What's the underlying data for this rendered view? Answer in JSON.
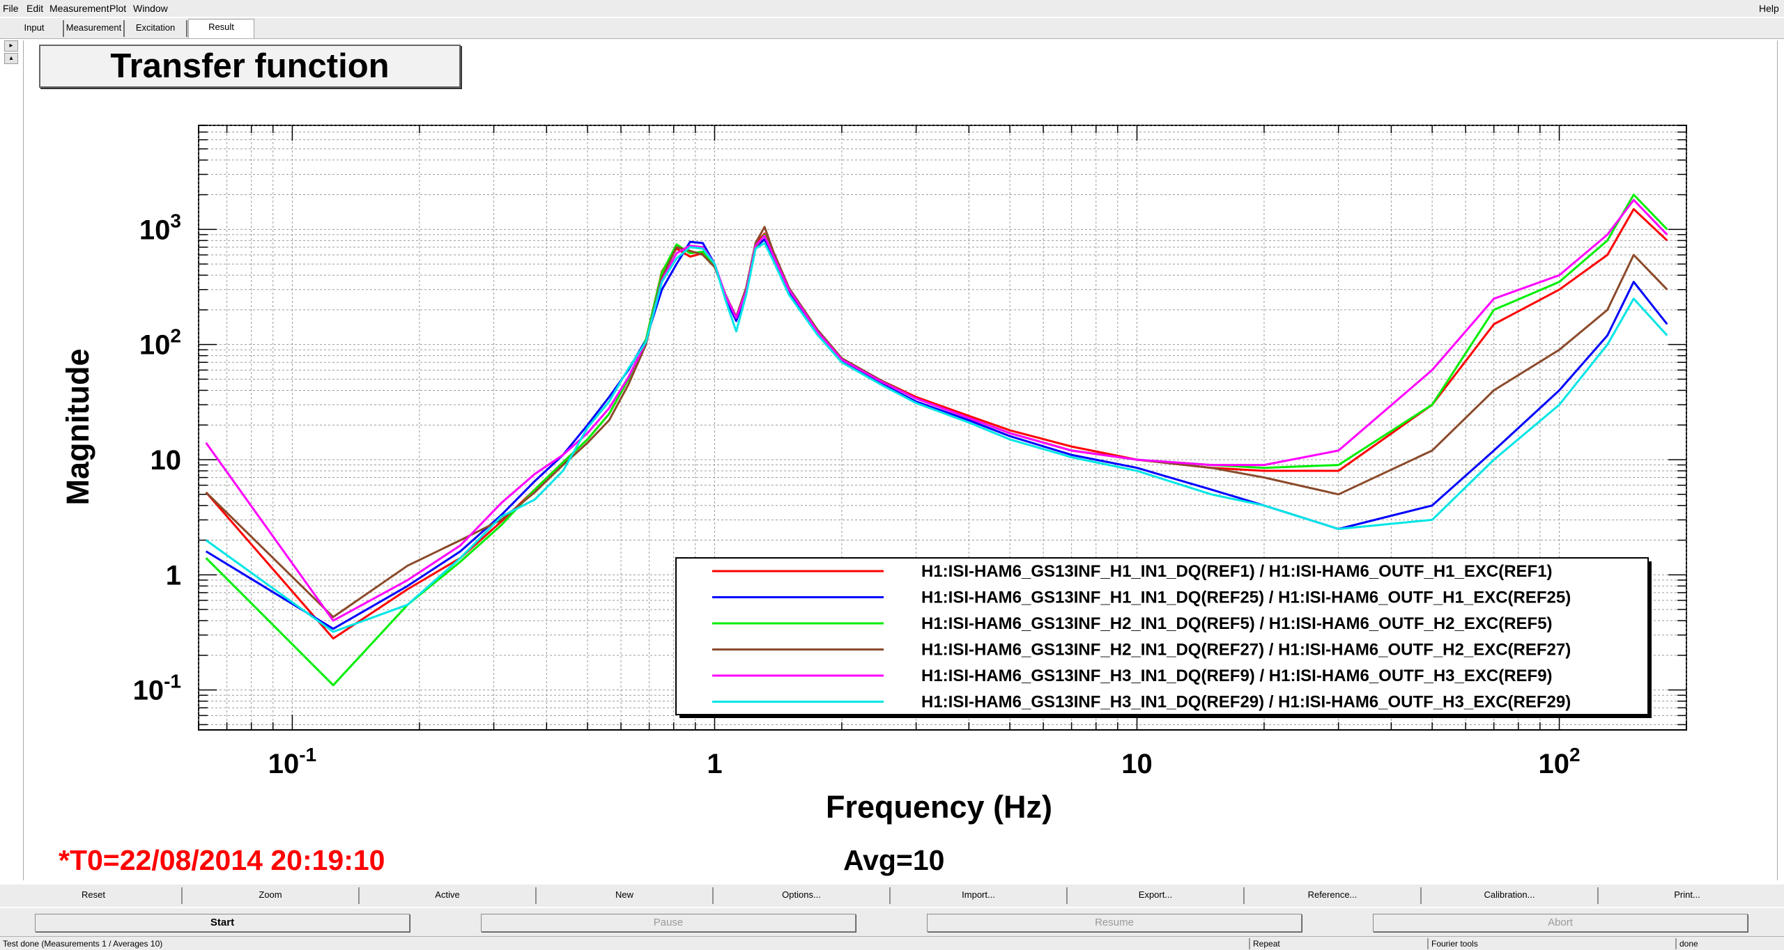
{
  "menubar": {
    "items": [
      "File",
      "Edit",
      "Measurement",
      "Plot",
      "Window"
    ],
    "help": "Help"
  },
  "tabs": [
    "Input",
    "Measurement",
    "Excitation",
    "Result"
  ],
  "active_tab": "Result",
  "plot": {
    "title": "Transfer function",
    "t0": "*T0=22/08/2014 20:19:10",
    "avg": "Avg=10"
  },
  "chart_data": {
    "type": "line",
    "title": "Transfer function",
    "xlabel": "Frequency (Hz)",
    "ylabel": "Magnitude",
    "xscale": "log",
    "yscale": "log",
    "xlim": [
      0.06,
      200
    ],
    "ylim": [
      0.045,
      8000
    ],
    "grid": true,
    "legend_position": "bottom-right",
    "x_ticks": [
      {
        "value": 0.1,
        "label": "10",
        "exp": "-1"
      },
      {
        "value": 1,
        "label": "1",
        "exp": ""
      },
      {
        "value": 10,
        "label": "10",
        "exp": ""
      },
      {
        "value": 100,
        "label": "10",
        "exp": "2"
      }
    ],
    "y_ticks": [
      {
        "value": 0.1,
        "label": "10",
        "exp": "-1"
      },
      {
        "value": 1,
        "label": "1",
        "exp": ""
      },
      {
        "value": 10,
        "label": "10",
        "exp": ""
      },
      {
        "value": 100,
        "label": "10",
        "exp": "2"
      },
      {
        "value": 1000,
        "label": "10",
        "exp": "3"
      }
    ],
    "series": [
      {
        "name": "H1:ISI-HAM6_GS13INF_H1_IN1_DQ(REF1) / H1:ISI-HAM6_OUTF_H1_EXC(REF1)",
        "color": "#ff0000",
        "x": [
          0.0625,
          0.125,
          0.1875,
          0.25,
          0.3125,
          0.375,
          0.4375,
          0.5,
          0.5625,
          0.625,
          0.6875,
          0.75,
          0.8125,
          0.875,
          0.9375,
          1.0,
          1.0625,
          1.125,
          1.1875,
          1.25,
          1.3125,
          1.375,
          1.5,
          1.75,
          2,
          2.5,
          3,
          4,
          5,
          7,
          10,
          15,
          20,
          30,
          50,
          70,
          100,
          130,
          150,
          180
        ],
        "y": [
          5.2,
          0.28,
          0.75,
          1.4,
          2.9,
          5.5,
          9.5,
          15,
          25,
          50,
          110,
          430,
          680,
          580,
          620,
          480,
          260,
          170,
          300,
          750,
          920,
          620,
          300,
          130,
          75,
          48,
          35,
          24,
          18,
          13,
          10,
          8.5,
          8,
          8,
          30,
          150,
          300,
          600,
          1500,
          800
        ]
      },
      {
        "name": "H1:ISI-HAM6_GS13INF_H1_IN1_DQ(REF25) / H1:ISI-HAM6_OUTF_H1_EXC(REF25)",
        "color": "#0000ff",
        "x": [
          0.0625,
          0.125,
          0.1875,
          0.25,
          0.3125,
          0.375,
          0.4375,
          0.5,
          0.5625,
          0.625,
          0.6875,
          0.75,
          0.8125,
          0.875,
          0.9375,
          1.0,
          1.0625,
          1.125,
          1.1875,
          1.25,
          1.3125,
          1.375,
          1.5,
          1.75,
          2,
          2.5,
          3,
          4,
          5,
          7,
          10,
          15,
          20,
          30,
          50,
          70,
          100,
          130,
          150,
          180
        ],
        "y": [
          1.6,
          0.34,
          0.8,
          1.6,
          3.3,
          6.5,
          11,
          20,
          35,
          60,
          110,
          300,
          500,
          780,
          760,
          500,
          250,
          160,
          280,
          700,
          820,
          560,
          280,
          125,
          72,
          45,
          32,
          22,
          16,
          11,
          8.5,
          5.5,
          4,
          2.5,
          4,
          12,
          40,
          120,
          350,
          150
        ]
      },
      {
        "name": "H1:ISI-HAM6_GS13INF_H2_IN1_DQ(REF5) / H1:ISI-HAM6_OUTF_H2_EXC(REF5)",
        "color": "#00ee00",
        "x": [
          0.0625,
          0.125,
          0.1875,
          0.25,
          0.3125,
          0.375,
          0.4375,
          0.5,
          0.5625,
          0.625,
          0.6875,
          0.75,
          0.8125,
          0.875,
          0.9375,
          1.0,
          1.0625,
          1.125,
          1.1875,
          1.25,
          1.3125,
          1.375,
          1.5,
          1.75,
          2,
          2.5,
          3,
          4,
          5,
          7,
          10,
          15,
          20,
          30,
          50,
          70,
          100,
          130,
          150,
          180
        ],
        "y": [
          1.4,
          0.11,
          0.55,
          1.3,
          2.7,
          5.5,
          9.5,
          15,
          25,
          50,
          110,
          420,
          740,
          620,
          640,
          480,
          270,
          170,
          290,
          700,
          900,
          600,
          300,
          130,
          74,
          47,
          34,
          23,
          17,
          12,
          10,
          9,
          8.5,
          9,
          30,
          200,
          350,
          800,
          2000,
          1000
        ]
      },
      {
        "name": "H1:ISI-HAM6_GS13INF_H2_IN1_DQ(REF27) / H1:ISI-HAM6_OUTF_H2_EXC(REF27)",
        "color": "#8b4a2b",
        "x": [
          0.0625,
          0.125,
          0.1875,
          0.25,
          0.3125,
          0.375,
          0.4375,
          0.5,
          0.5625,
          0.625,
          0.6875,
          0.75,
          0.8125,
          0.875,
          0.9375,
          1.0,
          1.0625,
          1.125,
          1.1875,
          1.25,
          1.3125,
          1.375,
          1.5,
          1.75,
          2,
          2.5,
          3,
          4,
          5,
          7,
          10,
          15,
          20,
          30,
          50,
          70,
          100,
          130,
          150,
          180
        ],
        "y": [
          5.2,
          0.43,
          1.2,
          2.0,
          3.0,
          5.2,
          9,
          14,
          22,
          45,
          100,
          380,
          700,
          650,
          600,
          470,
          265,
          175,
          310,
          760,
          1050,
          650,
          310,
          135,
          76,
          48,
          34,
          23,
          17,
          12,
          10,
          8.5,
          7,
          5,
          12,
          40,
          90,
          200,
          600,
          300
        ]
      },
      {
        "name": "H1:ISI-HAM6_GS13INF_H3_IN1_DQ(REF9) / H1:ISI-HAM6_OUTF_H3_EXC(REF9)",
        "color": "#ff00ff",
        "x": [
          0.0625,
          0.125,
          0.1875,
          0.25,
          0.3125,
          0.375,
          0.4375,
          0.5,
          0.5625,
          0.625,
          0.6875,
          0.75,
          0.8125,
          0.875,
          0.9375,
          1.0,
          1.0625,
          1.125,
          1.1875,
          1.25,
          1.3125,
          1.375,
          1.5,
          1.75,
          2,
          2.5,
          3,
          4,
          5,
          7,
          10,
          15,
          20,
          30,
          50,
          70,
          100,
          130,
          150,
          180
        ],
        "y": [
          14,
          0.4,
          0.9,
          1.8,
          4.2,
          7.5,
          11,
          17,
          28,
          52,
          105,
          360,
          620,
          720,
          700,
          500,
          265,
          170,
          290,
          720,
          880,
          600,
          300,
          130,
          74,
          47,
          34,
          23,
          17,
          12,
          10,
          9,
          9,
          12,
          60,
          250,
          400,
          900,
          1800,
          900
        ]
      },
      {
        "name": "H1:ISI-HAM6_GS13INF_H3_IN1_DQ(REF29) / H1:ISI-HAM6_OUTF_H3_EXC(REF29)",
        "color": "#00e5e5",
        "x": [
          0.0625,
          0.125,
          0.1875,
          0.25,
          0.3125,
          0.375,
          0.4375,
          0.5,
          0.5625,
          0.625,
          0.6875,
          0.75,
          0.8125,
          0.875,
          0.9375,
          1.0,
          1.0625,
          1.125,
          1.1875,
          1.25,
          1.3125,
          1.375,
          1.5,
          1.75,
          2,
          2.5,
          3,
          4,
          5,
          7,
          10,
          15,
          20,
          30,
          50,
          70,
          100,
          130,
          150,
          180
        ],
        "y": [
          2.0,
          0.32,
          0.55,
          1.4,
          3.2,
          4.5,
          8,
          19,
          32,
          62,
          105,
          350,
          560,
          700,
          680,
          500,
          240,
          130,
          270,
          680,
          760,
          540,
          270,
          122,
          70,
          44,
          31,
          21,
          15,
          10.5,
          8,
          5,
          4,
          2.5,
          3,
          10,
          30,
          100,
          250,
          120
        ]
      }
    ]
  },
  "toolbar": [
    "Reset",
    "Zoom",
    "Active",
    "New",
    "Options...",
    "Import...",
    "Export...",
    "Reference...",
    "Calibration...",
    "Print..."
  ],
  "controls": [
    "Start",
    "Pause",
    "Resume",
    "Abort"
  ],
  "status": {
    "message": "Test done (Measurements 1 / Averages 10)",
    "repeat": "Repeat",
    "tools": "Fourier tools",
    "state": "done"
  }
}
